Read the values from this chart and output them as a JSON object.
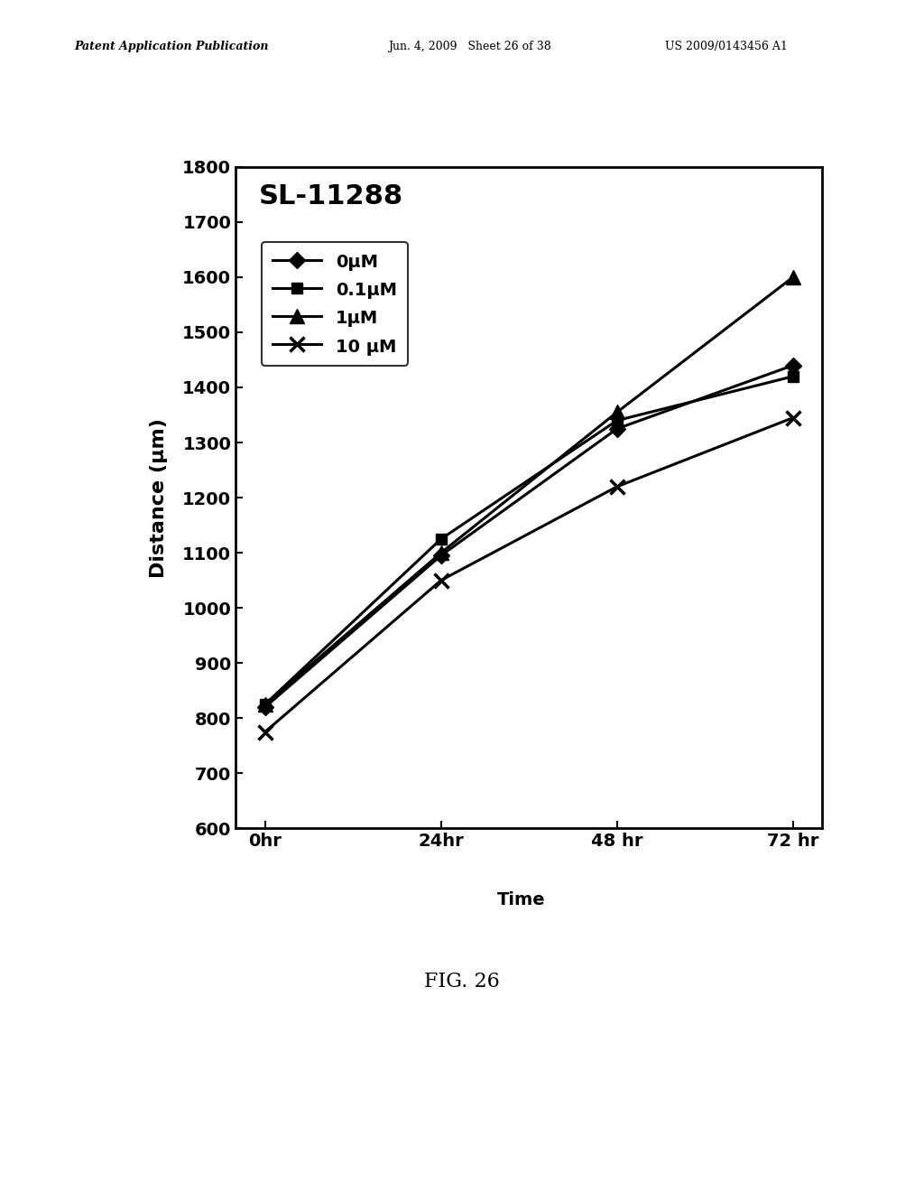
{
  "title": "SL-11288",
  "ylabel": "Distance (μm)",
  "x_values": [
    0,
    24,
    48,
    72
  ],
  "x_tick_labels": [
    "0hr",
    "24hr",
    "48 hr",
    "72 hr"
  ],
  "x_tick_raw": [
    0,
    24,
    48,
    72
  ],
  "ylim": [
    600,
    1800
  ],
  "yticks": [
    600,
    700,
    800,
    900,
    1000,
    1100,
    1200,
    1300,
    1400,
    1500,
    1600,
    1700,
    1800
  ],
  "series": [
    {
      "label": "0μM",
      "values": [
        820,
        1095,
        1325,
        1440
      ],
      "color": "#000000",
      "marker": "D",
      "markersize": 9,
      "linewidth": 2.2
    },
    {
      "label": "0.1μM",
      "values": [
        825,
        1125,
        1340,
        1420
      ],
      "color": "#000000",
      "marker": "s",
      "markersize": 9,
      "linewidth": 2.2
    },
    {
      "label": "1μM",
      "values": [
        825,
        1100,
        1355,
        1600
      ],
      "color": "#000000",
      "marker": "^",
      "markersize": 11,
      "linewidth": 2.2
    },
    {
      "label": "10 μM",
      "values": [
        775,
        1050,
        1220,
        1345
      ],
      "color": "#000000",
      "marker": "x",
      "markersize": 11,
      "linewidth": 2.2
    }
  ],
  "fig_width": 10.24,
  "fig_height": 13.2,
  "dpi": 100,
  "background_color": "#ffffff",
  "header_left": "Patent Application Publication",
  "header_mid": "Jun. 4, 2009   Sheet 26 of 38",
  "header_right": "US 2009/0143456 A1",
  "fig_label": "FIG. 26"
}
